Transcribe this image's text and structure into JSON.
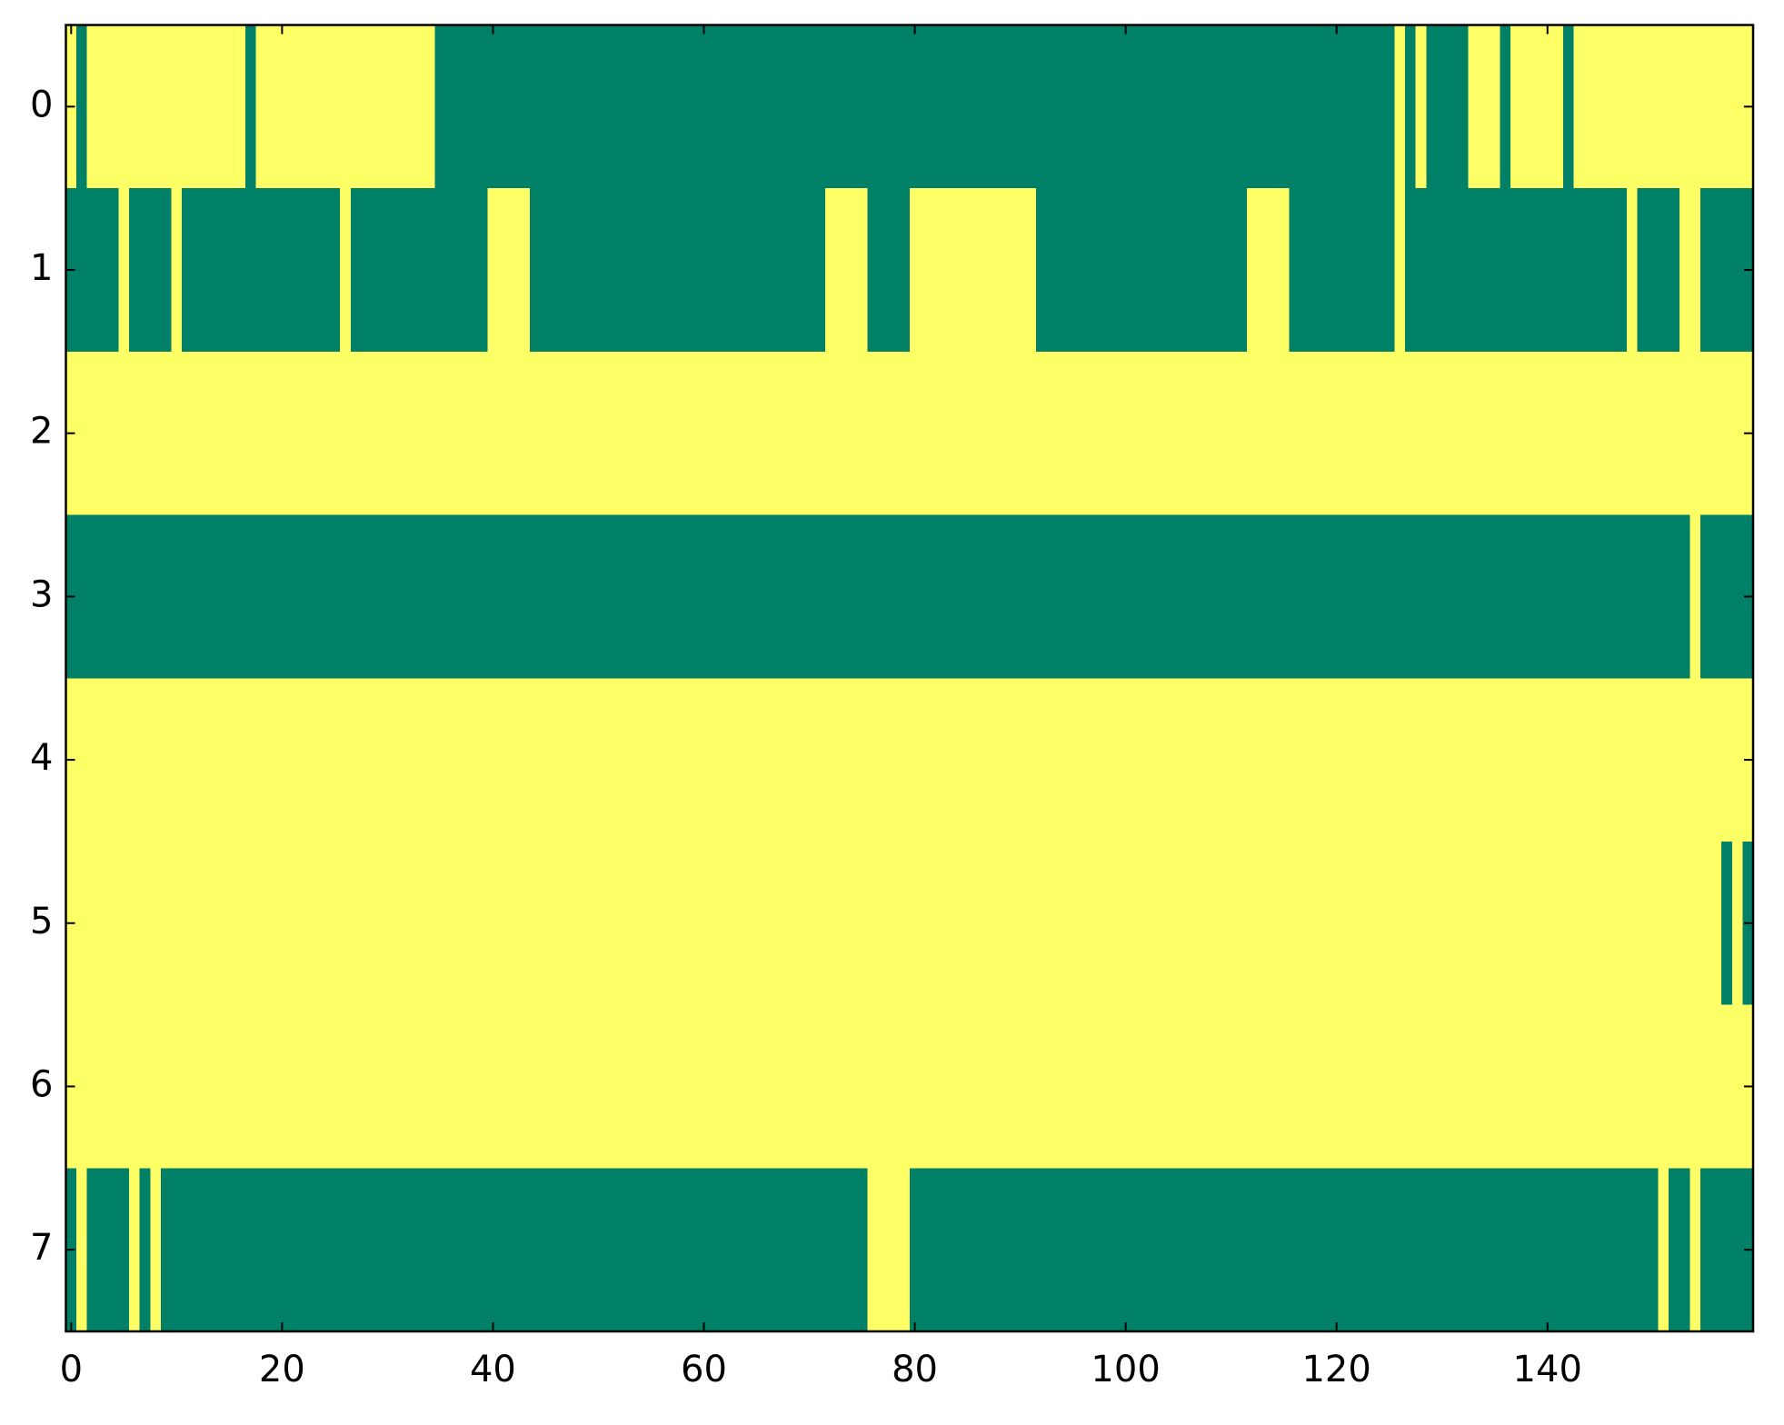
{
  "chart_data": {
    "type": "heatmap",
    "xlim": [
      -0.5,
      159.5
    ],
    "ylim": [
      7.5,
      -0.5
    ],
    "xticks": [
      0,
      20,
      40,
      60,
      80,
      100,
      120,
      140
    ],
    "yticks": [
      0,
      1,
      2,
      3,
      4,
      5,
      6,
      7
    ],
    "colors": [
      "#008066",
      "#ffff66"
    ],
    "values": [
      [
        1,
        0,
        1,
        1,
        1,
        1,
        1,
        1,
        1,
        1,
        1,
        1,
        1,
        1,
        1,
        1,
        1,
        0,
        1,
        1,
        1,
        1,
        1,
        1,
        1,
        1,
        1,
        1,
        1,
        1,
        1,
        1,
        1,
        1,
        1,
        0,
        0,
        0,
        0,
        0,
        0,
        0,
        0,
        0,
        0,
        0,
        0,
        0,
        0,
        0,
        0,
        0,
        0,
        0,
        0,
        0,
        0,
        0,
        0,
        0,
        0,
        0,
        0,
        0,
        0,
        0,
        0,
        0,
        0,
        0,
        0,
        0,
        0,
        0,
        0,
        0,
        0,
        0,
        0,
        0,
        0,
        0,
        0,
        0,
        0,
        0,
        0,
        0,
        0,
        0,
        0,
        0,
        0,
        0,
        0,
        0,
        0,
        0,
        0,
        0,
        0,
        0,
        0,
        0,
        0,
        0,
        0,
        0,
        0,
        0,
        0,
        0,
        0,
        0,
        0,
        0,
        0,
        0,
        0,
        0,
        0,
        0,
        0,
        0,
        0,
        0,
        1,
        0,
        1,
        0,
        0,
        0,
        0,
        1,
        1,
        1,
        0,
        1,
        1,
        1,
        1,
        1,
        0,
        1,
        1,
        1,
        1,
        1,
        1,
        1,
        1,
        1,
        1,
        1,
        1,
        1,
        1,
        1,
        1,
        1
      ],
      [
        0,
        0,
        0,
        0,
        0,
        1,
        0,
        0,
        0,
        0,
        1,
        0,
        0,
        0,
        0,
        0,
        0,
        0,
        0,
        0,
        0,
        0,
        0,
        0,
        0,
        0,
        1,
        0,
        0,
        0,
        0,
        0,
        0,
        0,
        0,
        0,
        0,
        0,
        0,
        0,
        1,
        1,
        1,
        1,
        0,
        0,
        0,
        0,
        0,
        0,
        0,
        0,
        0,
        0,
        0,
        0,
        0,
        0,
        0,
        0,
        0,
        0,
        0,
        0,
        0,
        0,
        0,
        0,
        0,
        0,
        0,
        0,
        1,
        1,
        1,
        1,
        0,
        0,
        0,
        0,
        1,
        1,
        1,
        1,
        1,
        1,
        1,
        1,
        1,
        1,
        1,
        1,
        0,
        0,
        0,
        0,
        0,
        0,
        0,
        0,
        0,
        0,
        0,
        0,
        0,
        0,
        0,
        0,
        0,
        0,
        0,
        0,
        1,
        1,
        1,
        1,
        0,
        0,
        0,
        0,
        0,
        0,
        0,
        0,
        0,
        0,
        1,
        0,
        0,
        0,
        0,
        0,
        0,
        0,
        0,
        0,
        0,
        0,
        0,
        0,
        0,
        0,
        0,
        0,
        0,
        0,
        0,
        0,
        1,
        0,
        0,
        0,
        0,
        1,
        1,
        0,
        0,
        0,
        0,
        0
      ],
      [
        1,
        1,
        1,
        1,
        1,
        1,
        1,
        1,
        1,
        1,
        1,
        1,
        1,
        1,
        1,
        1,
        1,
        1,
        1,
        1,
        1,
        1,
        1,
        1,
        1,
        1,
        1,
        1,
        1,
        1,
        1,
        1,
        1,
        1,
        1,
        1,
        1,
        1,
        1,
        1,
        1,
        1,
        1,
        1,
        1,
        1,
        1,
        1,
        1,
        1,
        1,
        1,
        1,
        1,
        1,
        1,
        1,
        1,
        1,
        1,
        1,
        1,
        1,
        1,
        1,
        1,
        1,
        1,
        1,
        1,
        1,
        1,
        1,
        1,
        1,
        1,
        1,
        1,
        1,
        1,
        1,
        1,
        1,
        1,
        1,
        1,
        1,
        1,
        1,
        1,
        1,
        1,
        1,
        1,
        1,
        1,
        1,
        1,
        1,
        1,
        1,
        1,
        1,
        1,
        1,
        1,
        1,
        1,
        1,
        1,
        1,
        1,
        1,
        1,
        1,
        1,
        1,
        1,
        1,
        1,
        1,
        1,
        1,
        1,
        1,
        1,
        1,
        1,
        1,
        1,
        1,
        1,
        1,
        1,
        1,
        1,
        1,
        1,
        1,
        1,
        1,
        1,
        1,
        1,
        1,
        1,
        1,
        1,
        1,
        1,
        1,
        1,
        1,
        1,
        1,
        1,
        1,
        1,
        1,
        1
      ],
      [
        0,
        0,
        0,
        0,
        0,
        0,
        0,
        0,
        0,
        0,
        0,
        0,
        0,
        0,
        0,
        0,
        0,
        0,
        0,
        0,
        0,
        0,
        0,
        0,
        0,
        0,
        0,
        0,
        0,
        0,
        0,
        0,
        0,
        0,
        0,
        0,
        0,
        0,
        0,
        0,
        0,
        0,
        0,
        0,
        0,
        0,
        0,
        0,
        0,
        0,
        0,
        0,
        0,
        0,
        0,
        0,
        0,
        0,
        0,
        0,
        0,
        0,
        0,
        0,
        0,
        0,
        0,
        0,
        0,
        0,
        0,
        0,
        0,
        0,
        0,
        0,
        0,
        0,
        0,
        0,
        0,
        0,
        0,
        0,
        0,
        0,
        0,
        0,
        0,
        0,
        0,
        0,
        0,
        0,
        0,
        0,
        0,
        0,
        0,
        0,
        0,
        0,
        0,
        0,
        0,
        0,
        0,
        0,
        0,
        0,
        0,
        0,
        0,
        0,
        0,
        0,
        0,
        0,
        0,
        0,
        0,
        0,
        0,
        0,
        0,
        0,
        0,
        0,
        0,
        0,
        0,
        0,
        0,
        0,
        0,
        0,
        0,
        0,
        0,
        0,
        0,
        0,
        0,
        0,
        0,
        0,
        0,
        0,
        0,
        0,
        0,
        0,
        0,
        0,
        1,
        0,
        0,
        0,
        0,
        0
      ],
      [
        1,
        1,
        1,
        1,
        1,
        1,
        1,
        1,
        1,
        1,
        1,
        1,
        1,
        1,
        1,
        1,
        1,
        1,
        1,
        1,
        1,
        1,
        1,
        1,
        1,
        1,
        1,
        1,
        1,
        1,
        1,
        1,
        1,
        1,
        1,
        1,
        1,
        1,
        1,
        1,
        1,
        1,
        1,
        1,
        1,
        1,
        1,
        1,
        1,
        1,
        1,
        1,
        1,
        1,
        1,
        1,
        1,
        1,
        1,
        1,
        1,
        1,
        1,
        1,
        1,
        1,
        1,
        1,
        1,
        1,
        1,
        1,
        1,
        1,
        1,
        1,
        1,
        1,
        1,
        1,
        1,
        1,
        1,
        1,
        1,
        1,
        1,
        1,
        1,
        1,
        1,
        1,
        1,
        1,
        1,
        1,
        1,
        1,
        1,
        1,
        1,
        1,
        1,
        1,
        1,
        1,
        1,
        1,
        1,
        1,
        1,
        1,
        1,
        1,
        1,
        1,
        1,
        1,
        1,
        1,
        1,
        1,
        1,
        1,
        1,
        1,
        1,
        1,
        1,
        1,
        1,
        1,
        1,
        1,
        1,
        1,
        1,
        1,
        1,
        1,
        1,
        1,
        1,
        1,
        1,
        1,
        1,
        1,
        1,
        1,
        1,
        1,
        1,
        1,
        1,
        1,
        1,
        1,
        1,
        1
      ],
      [
        1,
        1,
        1,
        1,
        1,
        1,
        1,
        1,
        1,
        1,
        1,
        1,
        1,
        1,
        1,
        1,
        1,
        1,
        1,
        1,
        1,
        1,
        1,
        1,
        1,
        1,
        1,
        1,
        1,
        1,
        1,
        1,
        1,
        1,
        1,
        1,
        1,
        1,
        1,
        1,
        1,
        1,
        1,
        1,
        1,
        1,
        1,
        1,
        1,
        1,
        1,
        1,
        1,
        1,
        1,
        1,
        1,
        1,
        1,
        1,
        1,
        1,
        1,
        1,
        1,
        1,
        1,
        1,
        1,
        1,
        1,
        1,
        1,
        1,
        1,
        1,
        1,
        1,
        1,
        1,
        1,
        1,
        1,
        1,
        1,
        1,
        1,
        1,
        1,
        1,
        1,
        1,
        1,
        1,
        1,
        1,
        1,
        1,
        1,
        1,
        1,
        1,
        1,
        1,
        1,
        1,
        1,
        1,
        1,
        1,
        1,
        1,
        1,
        1,
        1,
        1,
        1,
        1,
        1,
        1,
        1,
        1,
        1,
        1,
        1,
        1,
        1,
        1,
        1,
        1,
        1,
        1,
        1,
        1,
        1,
        1,
        1,
        1,
        1,
        1,
        1,
        1,
        1,
        1,
        1,
        1,
        1,
        1,
        1,
        1,
        1,
        1,
        1,
        1,
        1,
        1,
        1,
        0,
        1,
        0
      ],
      [
        1,
        1,
        1,
        1,
        1,
        1,
        1,
        1,
        1,
        1,
        1,
        1,
        1,
        1,
        1,
        1,
        1,
        1,
        1,
        1,
        1,
        1,
        1,
        1,
        1,
        1,
        1,
        1,
        1,
        1,
        1,
        1,
        1,
        1,
        1,
        1,
        1,
        1,
        1,
        1,
        1,
        1,
        1,
        1,
        1,
        1,
        1,
        1,
        1,
        1,
        1,
        1,
        1,
        1,
        1,
        1,
        1,
        1,
        1,
        1,
        1,
        1,
        1,
        1,
        1,
        1,
        1,
        1,
        1,
        1,
        1,
        1,
        1,
        1,
        1,
        1,
        1,
        1,
        1,
        1,
        1,
        1,
        1,
        1,
        1,
        1,
        1,
        1,
        1,
        1,
        1,
        1,
        1,
        1,
        1,
        1,
        1,
        1,
        1,
        1,
        1,
        1,
        1,
        1,
        1,
        1,
        1,
        1,
        1,
        1,
        1,
        1,
        1,
        1,
        1,
        1,
        1,
        1,
        1,
        1,
        1,
        1,
        1,
        1,
        1,
        1,
        1,
        1,
        1,
        1,
        1,
        1,
        1,
        1,
        1,
        1,
        1,
        1,
        1,
        1,
        1,
        1,
        1,
        1,
        1,
        1,
        1,
        1,
        1,
        1,
        1,
        1,
        1,
        1,
        1,
        1,
        1,
        1,
        1,
        1
      ],
      [
        0,
        1,
        0,
        0,
        0,
        0,
        1,
        0,
        1,
        0,
        0,
        0,
        0,
        0,
        0,
        0,
        0,
        0,
        0,
        0,
        0,
        0,
        0,
        0,
        0,
        0,
        0,
        0,
        0,
        0,
        0,
        0,
        0,
        0,
        0,
        0,
        0,
        0,
        0,
        0,
        0,
        0,
        0,
        0,
        0,
        0,
        0,
        0,
        0,
        0,
        0,
        0,
        0,
        0,
        0,
        0,
        0,
        0,
        0,
        0,
        0,
        0,
        0,
        0,
        0,
        0,
        0,
        0,
        0,
        0,
        0,
        0,
        0,
        0,
        0,
        0,
        1,
        1,
        1,
        1,
        0,
        0,
        0,
        0,
        0,
        0,
        0,
        0,
        0,
        0,
        0,
        0,
        0,
        0,
        0,
        0,
        0,
        0,
        0,
        0,
        0,
        0,
        0,
        0,
        0,
        0,
        0,
        0,
        0,
        0,
        0,
        0,
        0,
        0,
        0,
        0,
        0,
        0,
        0,
        0,
        0,
        0,
        0,
        0,
        0,
        0,
        0,
        0,
        0,
        0,
        0,
        0,
        0,
        0,
        0,
        0,
        0,
        0,
        0,
        0,
        0,
        0,
        0,
        0,
        0,
        0,
        0,
        0,
        0,
        0,
        0,
        1,
        0,
        0,
        1,
        0,
        0,
        0,
        0,
        0
      ]
    ]
  }
}
